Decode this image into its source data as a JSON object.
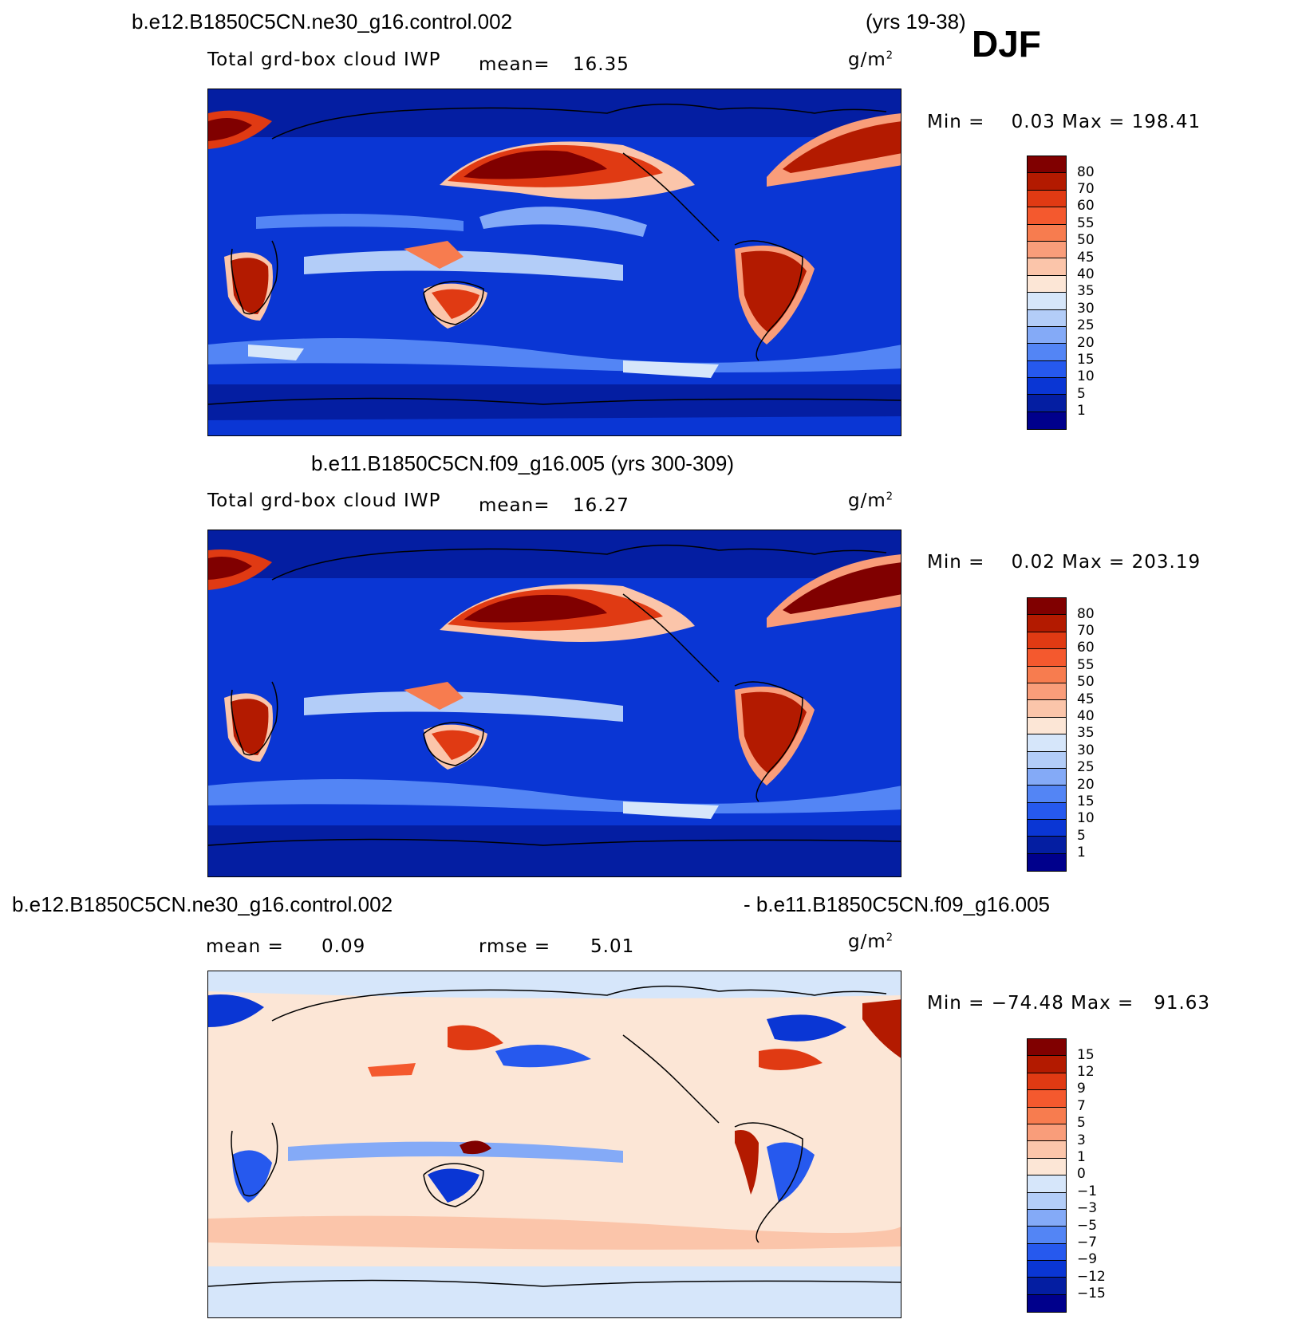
{
  "season": "DJF",
  "unit": "g/m",
  "unit_exp": "2",
  "panels": [
    {
      "case_title": "b.e12.B1850C5CN.ne30_g16.control.002",
      "years": "(yrs 19-38)",
      "variable": "Total grd-box cloud IWP",
      "mean_label": "mean=",
      "mean_value": "16.35",
      "minmax": "Min =    0.03 Max = 198.41",
      "colorbar": {
        "labels": [
          "80",
          "70",
          "60",
          "55",
          "50",
          "45",
          "40",
          "35",
          "30",
          "25",
          "20",
          "15",
          "10",
          "5",
          "1"
        ],
        "colors": [
          "#800000",
          "#b31a00",
          "#e03a13",
          "#f4592e",
          "#f77c4f",
          "#f99d7a",
          "#fbc5aa",
          "#fce6d6",
          "#d6e6fa",
          "#b3cdf8",
          "#84aaf7",
          "#5385f5",
          "#2659ee",
          "#0a36d4",
          "#041ea2",
          "#00008c"
        ]
      }
    },
    {
      "case_title": "b.e11.B1850C5CN.f09_g16.005 (yrs 300-309)",
      "variable": "Total grd-box cloud IWP",
      "mean_label": "mean=",
      "mean_value": "16.27",
      "minmax": "Min =    0.02 Max = 203.19",
      "colorbar": {
        "labels": [
          "80",
          "70",
          "60",
          "55",
          "50",
          "45",
          "40",
          "35",
          "30",
          "25",
          "20",
          "15",
          "10",
          "5",
          "1"
        ],
        "colors": [
          "#800000",
          "#b31a00",
          "#e03a13",
          "#f4592e",
          "#f77c4f",
          "#f99d7a",
          "#fbc5aa",
          "#fce6d6",
          "#d6e6fa",
          "#b3cdf8",
          "#84aaf7",
          "#5385f5",
          "#2659ee",
          "#0a36d4",
          "#041ea2",
          "#00008c"
        ]
      }
    },
    {
      "case_title_left": "b.e12.B1850C5CN.ne30_g16.control.002",
      "case_title_right": "- b.e11.B1850C5CN.f09_g16.005",
      "mean_label": "mean =",
      "mean_value": "0.09",
      "rmse_label": "rmse =",
      "rmse_value": "5.01",
      "minmax": "Min = −74.48 Max =   91.63",
      "colorbar": {
        "labels": [
          "15",
          "12",
          "9",
          "7",
          "5",
          "3",
          "1",
          "0",
          "−1",
          "−3",
          "−5",
          "−7",
          "−9",
          "−12",
          "−15"
        ],
        "colors": [
          "#800000",
          "#b31a00",
          "#e03a13",
          "#f4592e",
          "#f77c4f",
          "#f99d7a",
          "#fbc5aa",
          "#fce6d6",
          "#d6e6fa",
          "#b3cdf8",
          "#84aaf7",
          "#5385f5",
          "#2659ee",
          "#0a36d4",
          "#041ea2",
          "#00008c"
        ]
      }
    }
  ]
}
